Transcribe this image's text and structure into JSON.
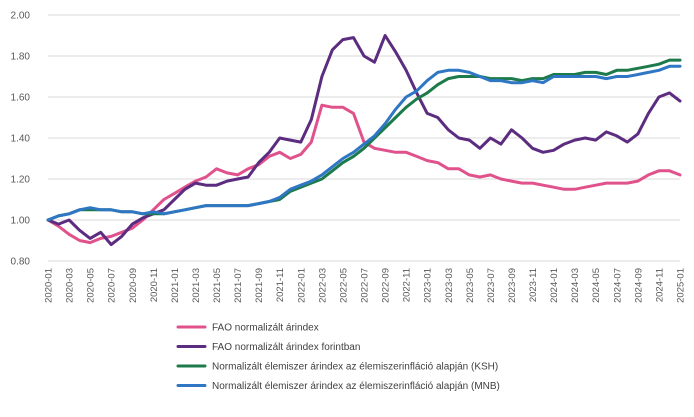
{
  "chart_data": {
    "type": "line",
    "title": "",
    "xlabel": "",
    "ylabel": "",
    "ylim": [
      0.8,
      2.0
    ],
    "yticks": [
      "0.80",
      "1.00",
      "1.20",
      "1.40",
      "1.60",
      "1.80",
      "2.00"
    ],
    "grid": "horizontal",
    "legend_position": "bottom",
    "x": [
      "2020-01",
      "2020-02",
      "2020-03",
      "2020-04",
      "2020-05",
      "2020-06",
      "2020-07",
      "2020-08",
      "2020-09",
      "2020-10",
      "2020-11",
      "2020-12",
      "2021-01",
      "2021-02",
      "2021-03",
      "2021-04",
      "2021-05",
      "2021-06",
      "2021-07",
      "2021-08",
      "2021-09",
      "2021-10",
      "2021-11",
      "2021-12",
      "2022-01",
      "2022-02",
      "2022-03",
      "2022-04",
      "2022-05",
      "2022-06",
      "2022-07",
      "2022-08",
      "2022-09",
      "2022-10",
      "2022-11",
      "2022-12",
      "2023-01",
      "2023-02",
      "2023-03",
      "2023-04",
      "2023-05",
      "2023-06",
      "2023-07",
      "2023-08",
      "2023-09",
      "2023-10",
      "2023-11",
      "2023-12",
      "2024-01",
      "2024-02",
      "2024-03",
      "2024-04",
      "2024-05",
      "2024-06",
      "2024-07",
      "2024-08",
      "2024-09",
      "2024-10",
      "2024-11",
      "2024-12",
      "2025-01"
    ],
    "x_tick_labels": [
      "2020-01",
      "2020-03",
      "2020-05",
      "2020-07",
      "2020-09",
      "2020-11",
      "2021-01",
      "2021-03",
      "2021-05",
      "2021-07",
      "2021-09",
      "2021-11",
      "2022-01",
      "2022-03",
      "2022-05",
      "2022-07",
      "2022-09",
      "2022-11",
      "2023-01",
      "2023-03",
      "2023-05",
      "2023-07",
      "2023-09",
      "2023-11",
      "2024-01",
      "2024-03",
      "2024-05",
      "2024-07",
      "2024-09",
      "2024-11",
      "2025-01"
    ],
    "series": [
      {
        "name": "FAO normalizált árindex",
        "color": "#e0528c",
        "values": [
          1.0,
          0.97,
          0.93,
          0.9,
          0.89,
          0.91,
          0.92,
          0.94,
          0.96,
          1.0,
          1.05,
          1.1,
          1.13,
          1.16,
          1.19,
          1.21,
          1.25,
          1.23,
          1.22,
          1.25,
          1.27,
          1.31,
          1.33,
          1.3,
          1.32,
          1.38,
          1.56,
          1.55,
          1.55,
          1.52,
          1.38,
          1.35,
          1.34,
          1.33,
          1.33,
          1.31,
          1.29,
          1.28,
          1.25,
          1.25,
          1.22,
          1.21,
          1.22,
          1.2,
          1.19,
          1.18,
          1.18,
          1.17,
          1.16,
          1.15,
          1.15,
          1.16,
          1.17,
          1.18,
          1.18,
          1.18,
          1.19,
          1.22,
          1.24,
          1.24,
          1.22
        ]
      },
      {
        "name": "FAO normalizált árindex forintban",
        "color": "#5b2c7f",
        "values": [
          1.0,
          0.98,
          1.0,
          0.95,
          0.91,
          0.94,
          0.88,
          0.92,
          0.98,
          1.01,
          1.03,
          1.05,
          1.1,
          1.15,
          1.18,
          1.17,
          1.17,
          1.19,
          1.2,
          1.21,
          1.28,
          1.33,
          1.4,
          1.39,
          1.38,
          1.49,
          1.7,
          1.83,
          1.88,
          1.89,
          1.8,
          1.77,
          1.9,
          1.82,
          1.73,
          1.62,
          1.52,
          1.5,
          1.44,
          1.4,
          1.39,
          1.35,
          1.4,
          1.37,
          1.44,
          1.4,
          1.35,
          1.33,
          1.34,
          1.37,
          1.39,
          1.4,
          1.39,
          1.43,
          1.41,
          1.38,
          1.42,
          1.52,
          1.6,
          1.62,
          1.58
        ]
      },
      {
        "name": "Normalizált élemiszer árindex az élemiszerinfláció alapján (KSH)",
        "color": "#1d7a4b",
        "values": [
          1.0,
          1.02,
          1.03,
          1.05,
          1.05,
          1.05,
          1.05,
          1.04,
          1.04,
          1.03,
          1.03,
          1.03,
          1.04,
          1.05,
          1.06,
          1.07,
          1.07,
          1.07,
          1.07,
          1.07,
          1.08,
          1.09,
          1.1,
          1.14,
          1.16,
          1.18,
          1.2,
          1.24,
          1.28,
          1.31,
          1.35,
          1.4,
          1.45,
          1.5,
          1.55,
          1.59,
          1.62,
          1.66,
          1.69,
          1.7,
          1.7,
          1.7,
          1.69,
          1.69,
          1.69,
          1.68,
          1.69,
          1.69,
          1.71,
          1.71,
          1.71,
          1.72,
          1.72,
          1.71,
          1.73,
          1.73,
          1.74,
          1.75,
          1.76,
          1.78,
          1.78
        ]
      },
      {
        "name": "Normalizált élemiszer árindex az élemiszerinfláció alapján (MNB)",
        "color": "#2f77c4",
        "values": [
          1.0,
          1.02,
          1.03,
          1.05,
          1.06,
          1.05,
          1.05,
          1.04,
          1.04,
          1.03,
          1.04,
          1.03,
          1.04,
          1.05,
          1.06,
          1.07,
          1.07,
          1.07,
          1.07,
          1.07,
          1.08,
          1.09,
          1.11,
          1.15,
          1.17,
          1.19,
          1.22,
          1.26,
          1.3,
          1.33,
          1.37,
          1.41,
          1.47,
          1.54,
          1.6,
          1.63,
          1.68,
          1.72,
          1.73,
          1.73,
          1.72,
          1.7,
          1.68,
          1.68,
          1.67,
          1.67,
          1.68,
          1.67,
          1.7,
          1.7,
          1.7,
          1.7,
          1.7,
          1.69,
          1.7,
          1.7,
          1.71,
          1.72,
          1.73,
          1.75,
          1.75
        ]
      }
    ]
  }
}
